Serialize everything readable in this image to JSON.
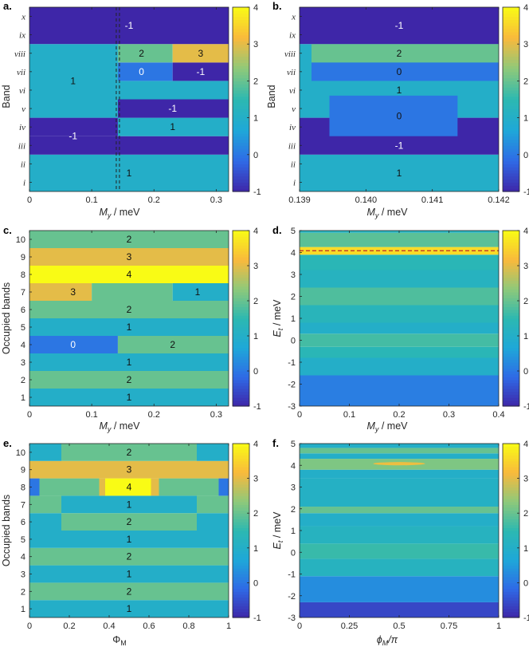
{
  "colorscale": {
    "min": -1,
    "max": 4,
    "stops": [
      "#3e26a8",
      "#2f6ae6",
      "#1ea8d8",
      "#2cb8b1",
      "#8ec97a",
      "#f9b93c",
      "#f9fb15"
    ]
  },
  "chart_data": [
    {
      "panel": "a.",
      "type": "heatmap",
      "xlabel_var": "M",
      "xlabel_sub": "y",
      "xlabel_unit": " / meV",
      "ylabel": "Band",
      "xlim": [
        0,
        0.32
      ],
      "xticks": [
        0,
        0.1,
        0.2,
        0.3
      ],
      "xtick_labels": [
        "0",
        "0.1",
        "0.2",
        "0.3"
      ],
      "y_categories": [
        "i",
        "ii",
        "iii",
        "iv",
        "v",
        "vi",
        "vii",
        "viii",
        "ix",
        "x"
      ],
      "dashed_vline_x": 0.142,
      "colorbar": {
        "ticks": [
          -1,
          0,
          1,
          2,
          3,
          4
        ]
      },
      "cells": [
        {
          "x": [
            0,
            0.32
          ],
          "y": [
            0.5,
            2.5
          ],
          "v": 1
        },
        {
          "x": [
            0,
            0.32
          ],
          "y": [
            2.5,
            3.5
          ],
          "v": -1
        },
        {
          "x": [
            0,
            0.142
          ],
          "y": [
            3.5,
            4.5
          ],
          "v": -1
        },
        {
          "x": [
            0.142,
            0.32
          ],
          "y": [
            3.5,
            4.5
          ],
          "v": 1
        },
        {
          "x": [
            0,
            0.142
          ],
          "y": [
            4.5,
            8.5
          ],
          "v": 1
        },
        {
          "x": [
            0.142,
            0.32
          ],
          "y": [
            4.5,
            5.5
          ],
          "v": -1
        },
        {
          "x": [
            0.142,
            0.32
          ],
          "y": [
            5.5,
            6.5
          ],
          "v": 1
        },
        {
          "x": [
            0.142,
            0.23
          ],
          "y": [
            6.5,
            7.5
          ],
          "v": 0
        },
        {
          "x": [
            0.23,
            0.32
          ],
          "y": [
            6.5,
            7.5
          ],
          "v": -1
        },
        {
          "x": [
            0.142,
            0.23
          ],
          "y": [
            7.5,
            8.5
          ],
          "v": 2
        },
        {
          "x": [
            0.23,
            0.32
          ],
          "y": [
            7.5,
            8.5
          ],
          "v": 3
        },
        {
          "x": [
            0,
            0.32
          ],
          "y": [
            8.5,
            10.5
          ],
          "v": -1
        }
      ],
      "labels": [
        {
          "text": "-1",
          "x": 0.16,
          "y": 9.5
        },
        {
          "text": "2",
          "x": 0.18,
          "y": 8
        },
        {
          "text": "3",
          "x": 0.275,
          "y": 8
        },
        {
          "text": "0",
          "x": 0.18,
          "y": 7
        },
        {
          "text": "-1",
          "x": 0.275,
          "y": 7
        },
        {
          "text": "1",
          "x": 0.07,
          "y": 6.5
        },
        {
          "text": "-1",
          "x": 0.23,
          "y": 5
        },
        {
          "text": "1",
          "x": 0.23,
          "y": 4
        },
        {
          "text": "-1",
          "x": 0.07,
          "y": 3.5
        },
        {
          "text": "1",
          "x": 0.16,
          "y": 1.5
        }
      ]
    },
    {
      "panel": "b.",
      "type": "heatmap",
      "xlabel_var": "M",
      "xlabel_sub": "y",
      "xlabel_unit": " / meV",
      "ylabel": "Band",
      "xlim": [
        0.139,
        0.142
      ],
      "xticks": [
        0.139,
        0.14,
        0.141,
        0.142
      ],
      "xtick_labels": [
        "0.139",
        "0.140",
        "0.141",
        "0.142"
      ],
      "y_categories": [
        "i",
        "ii",
        "iii",
        "iv",
        "v",
        "vi",
        "vii",
        "viii",
        "ix",
        "x"
      ],
      "colorbar": {
        "ticks": [
          -1,
          0,
          1,
          2,
          3,
          4
        ]
      },
      "cells": [
        {
          "x": [
            0.139,
            0.142
          ],
          "y": [
            0.5,
            2.5
          ],
          "v": 1
        },
        {
          "x": [
            0.139,
            0.142
          ],
          "y": [
            2.5,
            4.5
          ],
          "v": -1
        },
        {
          "x": [
            0.139,
            0.142
          ],
          "y": [
            4.5,
            8.5
          ],
          "v": 1
        },
        {
          "x": [
            0.13918,
            0.142
          ],
          "y": [
            6.5,
            7.5
          ],
          "v": 0
        },
        {
          "x": [
            0.13918,
            0.142
          ],
          "y": [
            7.5,
            8.5
          ],
          "v": 2
        },
        {
          "x": [
            0.13945,
            0.14138
          ],
          "y": [
            3.5,
            5.7
          ],
          "v": 0
        },
        {
          "x": [
            0.139,
            0.142
          ],
          "y": [
            8.5,
            10.5
          ],
          "v": -1
        }
      ],
      "labels": [
        {
          "text": "-1",
          "x": 0.1405,
          "y": 9.5
        },
        {
          "text": "2",
          "x": 0.1405,
          "y": 8
        },
        {
          "text": "0",
          "x": 0.1405,
          "y": 7
        },
        {
          "text": "1",
          "x": 0.1405,
          "y": 6
        },
        {
          "text": "0",
          "x": 0.1405,
          "y": 4.6
        },
        {
          "text": "-1",
          "x": 0.1405,
          "y": 3
        },
        {
          "text": "1",
          "x": 0.1405,
          "y": 1.5
        }
      ]
    },
    {
      "panel": "c.",
      "type": "heatmap",
      "xlabel_var": "M",
      "xlabel_sub": "y",
      "xlabel_unit": " / meV",
      "ylabel": "Occupied bands",
      "xlim": [
        0,
        0.32
      ],
      "xticks": [
        0,
        0.1,
        0.2,
        0.3
      ],
      "xtick_labels": [
        "0",
        "0.1",
        "0.2",
        "0.3"
      ],
      "y_categories": [
        "1",
        "2",
        "3",
        "4",
        "5",
        "6",
        "7",
        "8",
        "9",
        "10"
      ],
      "colorbar": {
        "ticks": [
          -1,
          0,
          1,
          2,
          3,
          4
        ]
      },
      "cells": [
        {
          "x": [
            0,
            0.32
          ],
          "y": [
            0.5,
            1.5
          ],
          "v": 1
        },
        {
          "x": [
            0,
            0.32
          ],
          "y": [
            1.5,
            2.5
          ],
          "v": 2
        },
        {
          "x": [
            0,
            0.32
          ],
          "y": [
            2.5,
            3.5
          ],
          "v": 1
        },
        {
          "x": [
            0,
            0.142
          ],
          "y": [
            3.5,
            4.5
          ],
          "v": 0
        },
        {
          "x": [
            0.142,
            0.32
          ],
          "y": [
            3.5,
            4.5
          ],
          "v": 2
        },
        {
          "x": [
            0,
            0.32
          ],
          "y": [
            4.5,
            5.5
          ],
          "v": 1
        },
        {
          "x": [
            0,
            0.32
          ],
          "y": [
            5.5,
            6.5
          ],
          "v": 2
        },
        {
          "x": [
            0,
            0.1
          ],
          "y": [
            6.5,
            7.5
          ],
          "v": 3
        },
        {
          "x": [
            0.1,
            0.23
          ],
          "y": [
            6.5,
            7.5
          ],
          "v": 2
        },
        {
          "x": [
            0.23,
            0.32
          ],
          "y": [
            6.5,
            7.5
          ],
          "v": 1
        },
        {
          "x": [
            0,
            0.32
          ],
          "y": [
            7.5,
            8.5
          ],
          "v": 4
        },
        {
          "x": [
            0,
            0.32
          ],
          "y": [
            8.5,
            9.5
          ],
          "v": 3
        },
        {
          "x": [
            0,
            0.32
          ],
          "y": [
            9.5,
            10.5
          ],
          "v": 2
        }
      ],
      "labels": [
        {
          "text": "2",
          "x": 0.16,
          "y": 10
        },
        {
          "text": "3",
          "x": 0.16,
          "y": 9
        },
        {
          "text": "4",
          "x": 0.16,
          "y": 8
        },
        {
          "text": "3",
          "x": 0.07,
          "y": 7
        },
        {
          "text": "1",
          "x": 0.27,
          "y": 7
        },
        {
          "text": "2",
          "x": 0.16,
          "y": 6
        },
        {
          "text": "1",
          "x": 0.16,
          "y": 5
        },
        {
          "text": "0",
          "x": 0.07,
          "y": 4
        },
        {
          "text": "2",
          "x": 0.23,
          "y": 4
        },
        {
          "text": "1",
          "x": 0.16,
          "y": 3
        },
        {
          "text": "2",
          "x": 0.16,
          "y": 2
        },
        {
          "text": "1",
          "x": 0.16,
          "y": 1
        }
      ]
    },
    {
      "panel": "d.",
      "type": "heatmap",
      "xlabel_var": "M",
      "xlabel_sub": "y",
      "xlabel_unit": " / meV",
      "ylabel_var": "E",
      "ylabel_sub": "t",
      "ylabel_unit": " / meV",
      "xlim": [
        0,
        0.4
      ],
      "xticks": [
        0,
        0.1,
        0.2,
        0.3,
        0.4
      ],
      "xtick_labels": [
        "0",
        "0.1",
        "0.2",
        "0.3",
        "0.4"
      ],
      "ylim": [
        -3,
        5
      ],
      "yticks": [
        -3,
        -2,
        -1,
        0,
        1,
        2,
        3,
        4,
        5
      ],
      "dashed_hline_y": 4.08,
      "colorbar": {
        "ticks": [
          -1,
          0,
          1,
          2,
          3,
          4
        ]
      },
      "bands": [
        {
          "y": [
            -3,
            -1.6
          ],
          "v": 0.1
        },
        {
          "y": [
            -1.6,
            -0.8
          ],
          "v": 1.0
        },
        {
          "y": [
            -0.8,
            -0.3
          ],
          "v": 1.4
        },
        {
          "y": [
            -0.3,
            0.3
          ],
          "v": 1.7
        },
        {
          "y": [
            0.3,
            0.8
          ],
          "v": 1.0
        },
        {
          "y": [
            0.8,
            1.6
          ],
          "v": 1.3
        },
        {
          "y": [
            1.6,
            2.4
          ],
          "v": 1.8
        },
        {
          "y": [
            2.4,
            3.2
          ],
          "v": 1.2
        },
        {
          "y": [
            3.2,
            3.9
          ],
          "v": 1.4
        },
        {
          "y": [
            3.9,
            4.25
          ],
          "v": 3.6
        },
        {
          "y": [
            4.25,
            4.9
          ],
          "v": 1.9
        },
        {
          "y": [
            4.9,
            5
          ],
          "v": 1.2
        }
      ]
    },
    {
      "panel": "e.",
      "type": "heatmap",
      "xlabel": "ΦM",
      "ylabel": "Occupied bands",
      "xlim": [
        0,
        1
      ],
      "xticks": [
        0,
        0.2,
        0.4,
        0.6,
        0.8,
        1
      ],
      "xtick_labels": [
        "0",
        "0.2",
        "0.4",
        "0.6",
        "0.8",
        "1"
      ],
      "y_categories": [
        "1",
        "2",
        "3",
        "4",
        "5",
        "6",
        "7",
        "8",
        "9",
        "10"
      ],
      "colorbar": {
        "ticks": [
          -1,
          0,
          1,
          2,
          3,
          4
        ]
      },
      "cells": [
        {
          "x": [
            0,
            1
          ],
          "y": [
            0.5,
            1.5
          ],
          "v": 1
        },
        {
          "x": [
            0,
            1
          ],
          "y": [
            1.5,
            2.5
          ],
          "v": 2
        },
        {
          "x": [
            0,
            1
          ],
          "y": [
            2.5,
            3.5
          ],
          "v": 1
        },
        {
          "x": [
            0,
            1
          ],
          "y": [
            3.5,
            4.5
          ],
          "v": 2
        },
        {
          "x": [
            0,
            1
          ],
          "y": [
            4.5,
            5.5
          ],
          "v": 1
        },
        {
          "x": [
            0,
            0.16
          ],
          "y": [
            5.5,
            6.5
          ],
          "v": 1
        },
        {
          "x": [
            0.16,
            0.84
          ],
          "y": [
            5.5,
            6.5
          ],
          "v": 2
        },
        {
          "x": [
            0.84,
            1
          ],
          "y": [
            5.5,
            6.5
          ],
          "v": 1
        },
        {
          "x": [
            0,
            0.16
          ],
          "y": [
            6.5,
            7.5
          ],
          "v": 2
        },
        {
          "x": [
            0.16,
            0.84
          ],
          "y": [
            6.5,
            7.5
          ],
          "v": 1
        },
        {
          "x": [
            0.84,
            1
          ],
          "y": [
            6.5,
            7.5
          ],
          "v": 2
        },
        {
          "x": [
            0,
            0.05
          ],
          "y": [
            7.5,
            8.5
          ],
          "v": 0
        },
        {
          "x": [
            0.05,
            0.35
          ],
          "y": [
            7.5,
            8.5
          ],
          "v": 2
        },
        {
          "x": [
            0.35,
            0.38
          ],
          "y": [
            7.5,
            8.5
          ],
          "v": 3
        },
        {
          "x": [
            0.38,
            0.61
          ],
          "y": [
            7.5,
            8.5
          ],
          "v": 4
        },
        {
          "x": [
            0.61,
            0.65
          ],
          "y": [
            7.5,
            8.5
          ],
          "v": 3
        },
        {
          "x": [
            0.65,
            0.95
          ],
          "y": [
            7.5,
            8.5
          ],
          "v": 2
        },
        {
          "x": [
            0.95,
            1
          ],
          "y": [
            7.5,
            8.5
          ],
          "v": 0
        },
        {
          "x": [
            0,
            1
          ],
          "y": [
            8.5,
            9.5
          ],
          "v": 3
        },
        {
          "x": [
            0,
            0.16
          ],
          "y": [
            9.5,
            10.5
          ],
          "v": 1
        },
        {
          "x": [
            0.16,
            0.84
          ],
          "y": [
            9.5,
            10.5
          ],
          "v": 2
        },
        {
          "x": [
            0.84,
            1
          ],
          "y": [
            9.5,
            10.5
          ],
          "v": 1
        }
      ],
      "labels": [
        {
          "text": "2",
          "x": 0.5,
          "y": 10
        },
        {
          "text": "3",
          "x": 0.5,
          "y": 9
        },
        {
          "text": "4",
          "x": 0.5,
          "y": 8
        },
        {
          "text": "1",
          "x": 0.5,
          "y": 7
        },
        {
          "text": "2",
          "x": 0.5,
          "y": 6
        },
        {
          "text": "1",
          "x": 0.5,
          "y": 5
        },
        {
          "text": "2",
          "x": 0.5,
          "y": 4
        },
        {
          "text": "1",
          "x": 0.5,
          "y": 3
        },
        {
          "text": "2",
          "x": 0.5,
          "y": 2
        },
        {
          "text": "1",
          "x": 0.5,
          "y": 1
        }
      ]
    },
    {
      "panel": "f.",
      "type": "heatmap",
      "xlabel": "ϕM/π",
      "ylabel_var": "E",
      "ylabel_sub": "t",
      "ylabel_unit": " / meV",
      "xlim": [
        0,
        1
      ],
      "xticks": [
        0,
        0.25,
        0.5,
        0.75,
        1
      ],
      "xtick_labels": [
        "0",
        "0.25",
        "0.5",
        "0.75",
        "1"
      ],
      "ylim": [
        -3,
        5
      ],
      "yticks": [
        -3,
        -2,
        -1,
        0,
        1,
        2,
        3,
        4,
        5
      ],
      "colorbar": {
        "ticks": [
          -1,
          0,
          1,
          2,
          3,
          4
        ]
      },
      "bands": [
        {
          "y": [
            -3,
            -2.3
          ],
          "v": -0.6
        },
        {
          "y": [
            -2.3,
            -1.1
          ],
          "v": 0.3
        },
        {
          "y": [
            -1.1,
            -0.3
          ],
          "v": 1.2
        },
        {
          "y": [
            -0.3,
            0.4
          ],
          "v": 1.6
        },
        {
          "y": [
            0.4,
            1.2
          ],
          "v": 1.2
        },
        {
          "y": [
            1.2,
            1.8
          ],
          "v": 1.0
        },
        {
          "y": [
            1.8,
            2.1
          ],
          "v": 2.0
        },
        {
          "y": [
            2.1,
            3.4
          ],
          "v": 1.1
        },
        {
          "y": [
            3.4,
            3.8
          ],
          "v": 1.0
        },
        {
          "y": [
            3.8,
            4.3
          ],
          "v": 2.2
        },
        {
          "y": [
            4.3,
            4.55
          ],
          "v": 1.0
        },
        {
          "y": [
            4.55,
            4.8
          ],
          "v": 2.0
        },
        {
          "y": [
            4.8,
            5
          ],
          "v": 1.0
        }
      ],
      "highlight": {
        "x": [
          0.37,
          0.63
        ],
        "y": [
          4.0,
          4.15
        ],
        "v": 3.2
      }
    }
  ]
}
